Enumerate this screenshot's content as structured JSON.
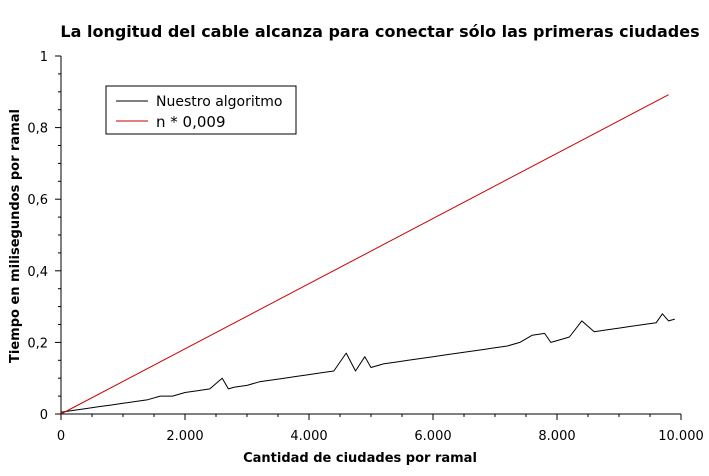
{
  "chart_data": {
    "type": "line",
    "title": "La longitud del cable alcanza para conectar sólo las primeras ciudades",
    "xlabel": "Cantidad de ciudades por ramal",
    "ylabel": "Tiempo en milisegundos por ramal",
    "xlim": [
      0,
      10000
    ],
    "ylim": [
      0,
      1
    ],
    "x_ticks": [
      0,
      2000,
      4000,
      6000,
      8000,
      10000
    ],
    "x_tick_labels": [
      "0",
      "2.000",
      "4.000",
      "6.000",
      "8.000",
      "10.000"
    ],
    "y_ticks": [
      0,
      0.2,
      0.4,
      0.6,
      0.8,
      1
    ],
    "y_tick_labels": [
      "0",
      "0,2",
      "0,4",
      "0,6",
      "0,8",
      "1"
    ],
    "grid": false,
    "legend_position": "top-left",
    "series": [
      {
        "name": "Nuestro algoritmo",
        "color": "#000000",
        "x": [
          0,
          200,
          400,
          600,
          800,
          1000,
          1200,
          1400,
          1600,
          1800,
          2000,
          2200,
          2400,
          2600,
          2700,
          2800,
          3000,
          3200,
          3400,
          3600,
          3800,
          4000,
          4200,
          4400,
          4600,
          4750,
          4900,
          5000,
          5200,
          5400,
          5600,
          5800,
          6000,
          6200,
          6400,
          6600,
          6800,
          7000,
          7200,
          7400,
          7600,
          7800,
          7900,
          8000,
          8200,
          8400,
          8600,
          8800,
          9000,
          9200,
          9400,
          9600,
          9700,
          9800,
          9900
        ],
        "y": [
          0.005,
          0.01,
          0.015,
          0.02,
          0.025,
          0.03,
          0.035,
          0.04,
          0.05,
          0.05,
          0.06,
          0.065,
          0.07,
          0.1,
          0.07,
          0.075,
          0.08,
          0.09,
          0.095,
          0.1,
          0.105,
          0.11,
          0.115,
          0.12,
          0.17,
          0.12,
          0.16,
          0.13,
          0.14,
          0.145,
          0.15,
          0.155,
          0.16,
          0.165,
          0.17,
          0.175,
          0.18,
          0.185,
          0.19,
          0.2,
          0.22,
          0.225,
          0.2,
          0.205,
          0.215,
          0.26,
          0.23,
          0.235,
          0.24,
          0.245,
          0.25,
          0.255,
          0.28,
          0.26,
          0.265
        ]
      },
      {
        "name": "n * 0,009",
        "color": "#cc0000",
        "x": [
          0,
          9800
        ],
        "y": [
          0,
          0.892
        ]
      }
    ]
  }
}
